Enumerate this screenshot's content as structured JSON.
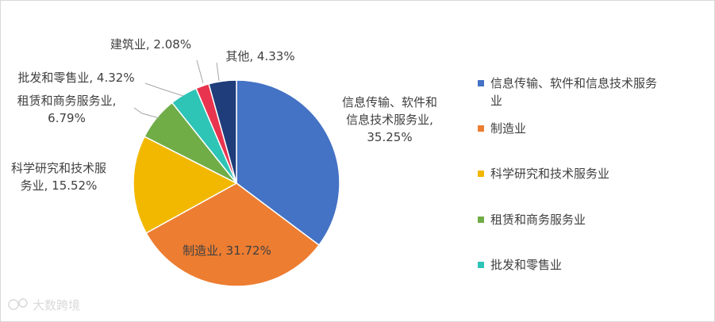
{
  "chart_data": {
    "type": "pie",
    "title": "",
    "categories": [
      "信息传输、软件和信息技术服务业",
      "制造业",
      "科学研究和技术服务业",
      "租赁和商务服务业",
      "批发和零售业",
      "建筑业",
      "其他"
    ],
    "values": [
      35.25,
      31.72,
      15.52,
      6.79,
      4.32,
      2.08,
      4.33
    ],
    "unit": "%",
    "colors": [
      "#4472C4",
      "#ED7D31",
      "#F2B800",
      "#70AD47",
      "#2EC4B6",
      "#E8344E",
      "#1F3D7A"
    ],
    "data_labels": [
      [
        "信息传输、软件和",
        "信息技术服务业,",
        "35.25%"
      ],
      [
        "制造业, 31.72%"
      ],
      [
        "科学研究和技术服",
        "务业, 15.52%"
      ],
      [
        "租赁和商务服务业,",
        "6.79%"
      ],
      [
        "批发和零售业, 4.32%"
      ],
      [
        "建筑业, 2.08%"
      ],
      [
        "其他, 4.33%"
      ]
    ],
    "legend": {
      "position": "right",
      "entries": [
        "信息传输、软件和信息技术服务业",
        "制造业",
        "科学研究和技术服务业",
        "租赁和商务服务业",
        "批发和零售业"
      ]
    }
  },
  "watermark": {
    "text": "大数跨境"
  }
}
